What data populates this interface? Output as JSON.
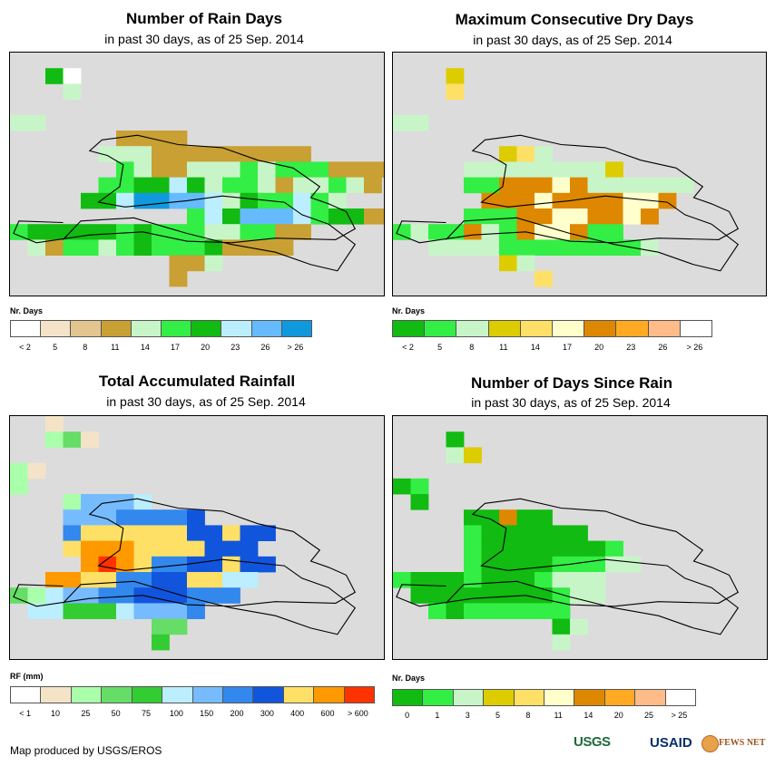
{
  "panels": [
    {
      "title": "Number of Rain Days",
      "subtitle": "in past 30 days, as of 25 Sep. 2014",
      "legend_title": "Nr. Days",
      "legend_colors": [
        "#ffffff",
        "#f5e3c8",
        "#e3c58f",
        "#c9a033",
        "#c8f5c8",
        "#33ee44",
        "#11bb11",
        "#bbeeff",
        "#66bbff",
        "#1199dd"
      ],
      "legend_labels": [
        "< 2",
        "5",
        "8",
        "11",
        "14",
        "17",
        "20",
        "23",
        "26",
        "> 26"
      ]
    },
    {
      "title": "Maximum Consecutive Dry Days",
      "subtitle": "in past 30 days, as of 25 Sep. 2014",
      "legend_title": "Nr. Days",
      "legend_colors": [
        "#11bb11",
        "#33ee44",
        "#c8f5c8",
        "#ddcc00",
        "#ffe066",
        "#ffffcc",
        "#dd8800",
        "#ffaa22",
        "#ffbb88",
        "#ffffff"
      ],
      "legend_labels": [
        "< 2",
        "5",
        "8",
        "11",
        "14",
        "17",
        "20",
        "23",
        "26",
        "> 26"
      ]
    },
    {
      "title": "Total Accumulated Rainfall",
      "subtitle": "in past 30 days, as of 25 Sep. 2014",
      "legend_title": "RF (mm)",
      "legend_colors": [
        "#ffffff",
        "#f5e3c8",
        "#aaffaa",
        "#66dd66",
        "#33cc33",
        "#bbeeff",
        "#77bbff",
        "#3388ee",
        "#1155dd",
        "#ffe066",
        "#ff9900",
        "#ff3300"
      ],
      "legend_labels": [
        "< 1",
        "10",
        "25",
        "50",
        "75",
        "100",
        "150",
        "200",
        "300",
        "400",
        "600",
        "> 600"
      ]
    },
    {
      "title": "Number of Days Since Rain",
      "subtitle": "in past 30 days, as of 25 Sep. 2014",
      "legend_title": "Nr. Days",
      "legend_colors": [
        "#11bb11",
        "#33ee44",
        "#c8f5c8",
        "#ddcc00",
        "#ffe066",
        "#ffffcc",
        "#dd8800",
        "#ffaa22",
        "#ffbb88",
        "#ffffff"
      ],
      "legend_labels": [
        "0",
        "1",
        "3",
        "5",
        "8",
        "11",
        "14",
        "20",
        "25",
        "> 25"
      ]
    }
  ],
  "footer": {
    "credit": "Map produced by USGS/EROS",
    "logo_usgs": "USGS",
    "logo_usaid": "USAID",
    "logo_fewsnet": "FEWS NET"
  },
  "cells": {
    "p1": [
      "A 2 1 G 4 ",
      "A 3 2 E ",
      "B 0 4 E E ",
      "C 6 5 D D D D ",
      "C 5 6 E E E D D D D D D D D D ",
      "A 6 7 F E D D E E E F E F F F D D D D ",
      "B 5 8 F F G G H G E F F E D E E F E D ",
      "E 4 9 G G H J J I I H E G F F H F E ",
      "A 10 10 F H G I I I H F G G D D D ",
      "B 0 11 F G G G G G F G F F F E E F F D D ",
      "D 1 12 E D F F E F G F F F G D D D D ",
      "C 9 13 D D E ",
      "E 9 14 D "
    ],
    "p2": [
      "E 3 1 D ",
      "C 3 2 E ",
      "F 0 4 C C ",
      "C 6 6 D E C ",
      "C 4 7 C C C C C C C C D ",
      "A 4 8 B B G G G F G C C C C C C ",
      "C 5 9 G G G F G G G G F F G ",
      "C 4 10 B B B G G F F G G F G ",
      "D 0 11 B C B B G C B G F F G B B ",
      "E 2 12 C C C C B B B B B B B B C ",
      "B 6 13 D C ",
      "B 8 14 E "
    ],
    "p3": [
      "C 2 0 B ",
      "C 2 1 C D B ",
      "C 0 3 C B ",
      "C 0 4 C ",
      "F 3 5 C G G G F ",
      "F 3 6 G G G H H H H I ",
      "F 3 7 H J J J J J J I I J I I ",
      "G 3 8 J K K K J J J J I I I ",
      "F 4 9 K L K J H H I I J I I ",
      "F 2 10 K K J J H H I I J J F F ",
      "D 0 11 D C F G G H H I I I H H H ",
      "E 1 12 F F E E E F G G G H ",
      "F 8 13 D D ",
      "F 8 14 E "
    ],
    "p4": [
      "C 3 1 A ",
      "E 3 2 C D ",
      "A 0 4 A B ",
      "C 1 5 A ",
      "A 4 6 A A G A A ",
      "A 4 7 B A A A A A A ",
      "B 4 8 B A A A A A A A B ",
      "B 4 9 B A A A A B B B C C ",
      "A 0 10 B A A A B A A A B C C C ",
      "A 1 11 A A A A A A A A B C C ",
      "A 2 12 B A B B B B B B ",
      "A 9 13 A C ",
      "B 9 14 C "
    ]
  }
}
